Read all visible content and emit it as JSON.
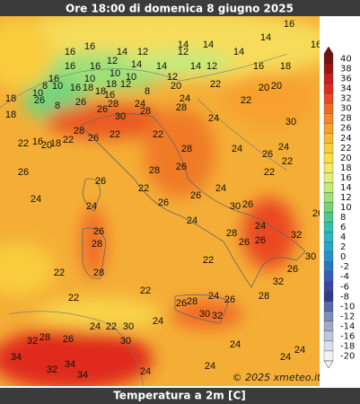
{
  "header": {
    "title": "Ore 18:00 di domenica 8 giugno 2025"
  },
  "footer": {
    "caption": "Temperatura a 2m [C]"
  },
  "credit": "© 2025 xmeteo.it",
  "colorbar": {
    "ticks": [
      40,
      38,
      36,
      34,
      32,
      30,
      28,
      26,
      24,
      22,
      20,
      18,
      16,
      14,
      12,
      10,
      8,
      6,
      4,
      2,
      0,
      -2,
      -4,
      -6,
      -8,
      -10,
      -12,
      -14,
      -16,
      -18,
      -20
    ],
    "colors": [
      "#7a1010",
      "#a01414",
      "#c81e1e",
      "#e02a1e",
      "#ea4a22",
      "#f06a26",
      "#f4872a",
      "#f7a02e",
      "#f8b834",
      "#f9cc3c",
      "#fadd48",
      "#f6e866",
      "#e4ef7a",
      "#c4ea7c",
      "#9ee07a",
      "#74d47a",
      "#4ec98c",
      "#36c0a8",
      "#2cb6c0",
      "#2aa6cc",
      "#2c8ec8",
      "#2f74be",
      "#345cb2",
      "#3a48a4",
      "#2f3c8e",
      "#5a6aa8",
      "#7e8cbc",
      "#a0aacc",
      "#c0c6dc",
      "#dcdfea",
      "#f2f2f6"
    ]
  },
  "labels": [
    16,
    14,
    16,
    14,
    14,
    16,
    16,
    14,
    12,
    12,
    14,
    16,
    12,
    14,
    14,
    12,
    14,
    12,
    16,
    18,
    16,
    10,
    10,
    10,
    16,
    8,
    10,
    10,
    16,
    18,
    18,
    12,
    18,
    16,
    8,
    20,
    24,
    22,
    20,
    20,
    18,
    26,
    26,
    28,
    24,
    28,
    28,
    22,
    18,
    8,
    30,
    26,
    28,
    22,
    22,
    24,
    30,
    22,
    16,
    20,
    18,
    22,
    26,
    24,
    26,
    24,
    22,
    28,
    28,
    26,
    22,
    26,
    26,
    22,
    24,
    26,
    26,
    24,
    30,
    26,
    26,
    24,
    24,
    24,
    26,
    28,
    28,
    32,
    26,
    26,
    30,
    22,
    26,
    28,
    22,
    32,
    22,
    22,
    26,
    28,
    24,
    26,
    28,
    30,
    32,
    24,
    22,
    24,
    30,
    32,
    28,
    26,
    30,
    34,
    24,
    24,
    24,
    32,
    34,
    34,
    24,
    24
  ]
}
